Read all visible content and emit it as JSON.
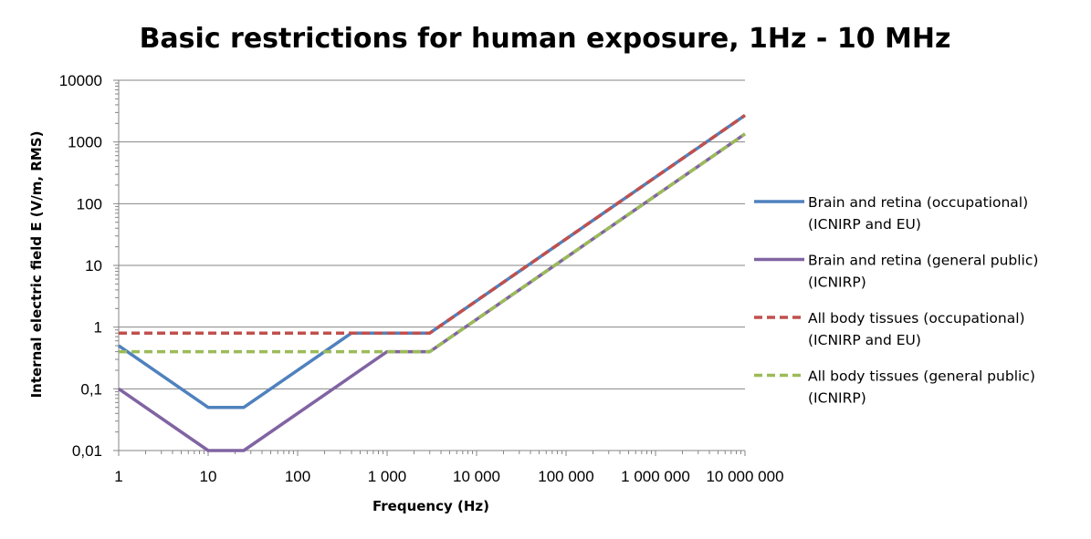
{
  "chart_data": {
    "type": "line",
    "title": "Basic restrictions for human exposure, 1Hz - 10 MHz",
    "xlabel": "Frequency (Hz)",
    "ylabel": "Internal electric field E (V/m, RMS)",
    "xscale": "log",
    "yscale": "log",
    "xlim": [
      1,
      10000000
    ],
    "ylim": [
      0.01,
      10000
    ],
    "x_ticks": [
      {
        "value": 1,
        "label": "1"
      },
      {
        "value": 10,
        "label": "10"
      },
      {
        "value": 100,
        "label": "100"
      },
      {
        "value": 1000,
        "label": "1 000"
      },
      {
        "value": 10000,
        "label": "10 000"
      },
      {
        "value": 100000,
        "label": "100 000"
      },
      {
        "value": 1000000,
        "label": "1 000 000"
      },
      {
        "value": 10000000,
        "label": "10 000 000"
      }
    ],
    "y_ticks": [
      {
        "value": 0.01,
        "label": "0,01"
      },
      {
        "value": 0.1,
        "label": "0,1"
      },
      {
        "value": 1,
        "label": "1"
      },
      {
        "value": 10,
        "label": "10"
      },
      {
        "value": 100,
        "label": "100"
      },
      {
        "value": 1000,
        "label": "1000"
      },
      {
        "value": 10000,
        "label": "10000"
      }
    ],
    "grid": "horizontal major",
    "legend_position": "right",
    "series": [
      {
        "name": "Brain and retina (occupational) (ICNIRP and EU)",
        "legend_lines": [
          "Brain and retina (occupational)",
          "(ICNIRP and EU)"
        ],
        "color": "#4F81BD",
        "dash": "solid",
        "points": [
          [
            1,
            0.5
          ],
          [
            10,
            0.05
          ],
          [
            25,
            0.05
          ],
          [
            400,
            0.8
          ],
          [
            3000,
            0.8
          ],
          [
            10000000,
            2700
          ]
        ]
      },
      {
        "name": "Brain and retina (general public) (ICNIRP)",
        "legend_lines": [
          "Brain and retina (general public)",
          "(ICNIRP)"
        ],
        "color": "#8064A2",
        "dash": "solid",
        "points": [
          [
            1,
            0.1
          ],
          [
            10,
            0.01
          ],
          [
            25,
            0.01
          ],
          [
            1000,
            0.4
          ],
          [
            3000,
            0.4
          ],
          [
            10000000,
            1350
          ]
        ]
      },
      {
        "name": "All body tissues (occupational) (ICNIRP and EU)",
        "legend_lines": [
          "All body tissues (occupational)",
          "(ICNIRP and EU)"
        ],
        "color": "#C0504D",
        "dash": "dashed",
        "points": [
          [
            1,
            0.8
          ],
          [
            3000,
            0.8
          ],
          [
            10000000,
            2700
          ]
        ]
      },
      {
        "name": "All body tissues (general public) (ICNIRP)",
        "legend_lines": [
          "All body tissues (general public)",
          "(ICNIRP)"
        ],
        "color": "#9BBB59",
        "dash": "dashed",
        "points": [
          [
            1,
            0.4
          ],
          [
            3000,
            0.4
          ],
          [
            10000000,
            1350
          ]
        ]
      }
    ]
  }
}
